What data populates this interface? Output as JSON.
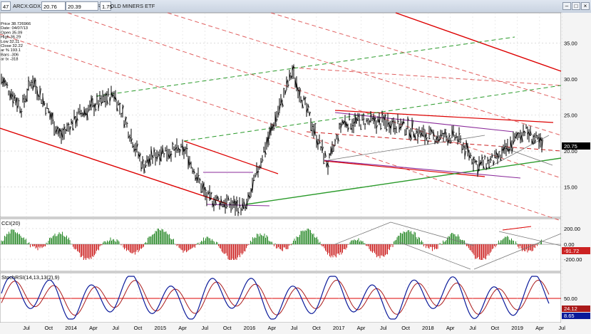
{
  "window": {
    "symbol_field": "47",
    "title": "ARCX:GDX.W  —  VANECK VECTORS GOLD MINERS ETF",
    "price_field_1": "20.76",
    "price_field_2": "20.39",
    "price_field_3": "1.75"
  },
  "info_panel": [
    "Price 38.726966",
    "Date: 04/07/13",
    "Open 35.09",
    "High 36.29",
    "Low 32.11",
    "Close 32.22",
    "ar % 193.1",
    "Bars -306",
    "ar tx -318"
  ],
  "price_panel": {
    "y_ticks": [
      "35.00",
      "30.00",
      "25.00",
      "20.00",
      "15.00"
    ],
    "last_price": "20.75",
    "ylim": [
      11,
      39
    ]
  },
  "cci_panel": {
    "label": "CCI(20)",
    "y_ticks": [
      "200.00",
      "0.00",
      "-200.00"
    ],
    "last_value": "-91.72"
  },
  "stoch_panel": {
    "label": "StochRSI(14,13,13(2),9)",
    "y_ticks": [
      "50.00"
    ],
    "last_value_1": "24.12",
    "last_value_2": "8.65"
  },
  "x_axis": {
    "labels": [
      "Jul",
      "Oct",
      "2014",
      "Apr",
      "Jul",
      "Oct",
      "2015",
      "Apr",
      "Jul",
      "Oct",
      "2016",
      "Apr",
      "Jul",
      "Oct",
      "2017",
      "Apr",
      "Jul",
      "Oct",
      "2018",
      "Apr",
      "Jul",
      "Oct",
      "2019",
      "Apr",
      "Jul"
    ]
  },
  "colors": {
    "up_bar": "#2a8a2a",
    "down_bar": "#cc2222",
    "trend_red": "#dd0000",
    "trend_green": "#2a9a2a",
    "trend_purple": "#8a2a9a",
    "stoch_blue": "#0a1a9a",
    "stoch_red": "#aa1a1a"
  }
}
